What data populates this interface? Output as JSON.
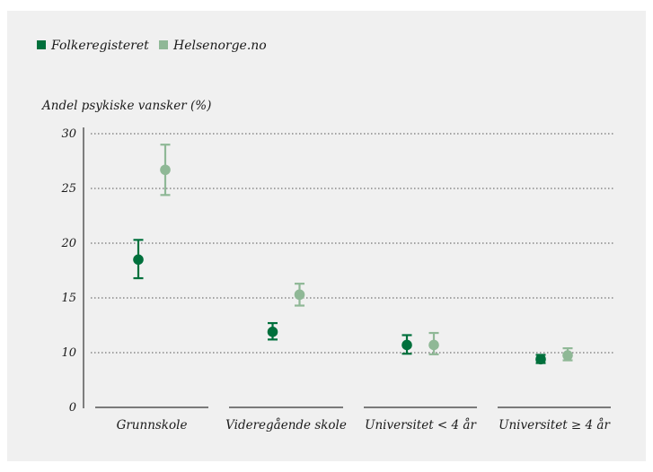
{
  "chart_data": {
    "type": "scatter",
    "title": "",
    "ylabel": "Andel psykiske vansker (%)",
    "xlabel": "",
    "ylim": [
      0,
      30
    ],
    "yticks": [
      0,
      10,
      15,
      20,
      25,
      30
    ],
    "grid": true,
    "legend_position": "top-left",
    "categories": [
      "Grunnskole",
      "Videregående skole",
      "Universitet < 4 år",
      "Universitet ≥ 4 år"
    ],
    "series": [
      {
        "name": "Folkeregisteret",
        "color": "#00703c",
        "values": [
          18.5,
          11.9,
          10.7,
          8.8
        ],
        "lower": [
          16.8,
          11.2,
          9.8,
          8.1
        ],
        "upper": [
          20.3,
          12.7,
          11.6,
          9.6
        ]
      },
      {
        "name": "Helsenorge.no",
        "color": "#8fb896",
        "values": [
          26.7,
          15.3,
          10.7,
          9.5
        ],
        "lower": [
          24.4,
          14.3,
          9.7,
          8.6
        ],
        "upper": [
          29.0,
          16.3,
          11.8,
          10.4
        ]
      }
    ]
  }
}
